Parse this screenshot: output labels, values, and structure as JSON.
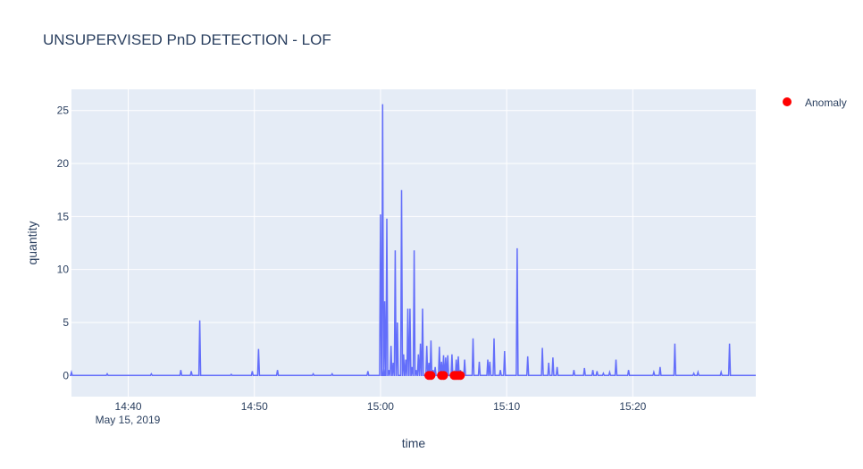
{
  "chart_data": {
    "type": "line",
    "title": "UNSUPERVISED PnD DETECTION - LOF",
    "xlabel": "time",
    "ylabel": "quantity",
    "x_date_label": "May 15, 2019",
    "x_ticks": [
      "14:40",
      "14:50",
      "15:00",
      "15:10",
      "15:20"
    ],
    "y_ticks": [
      0,
      5,
      10,
      15,
      20,
      25
    ],
    "ylim": [
      -2,
      27
    ],
    "xlim": [
      "14:35:30",
      "15:29:45"
    ],
    "grid": true,
    "legend": {
      "position": "top-right",
      "entries": [
        "Anomaly"
      ]
    },
    "colors": {
      "line": "#636efa",
      "anomaly": "#ff0000",
      "plot_bg": "#e5ecf6",
      "grid": "#ffffff"
    },
    "series": [
      {
        "type": "line",
        "x": [
          "14:35:30",
          "14:35:40",
          "14:35:50",
          "14:38:20",
          "14:41:50",
          "14:44:10",
          "14:45:00",
          "14:45:40",
          "14:45:45",
          "14:48:10",
          "14:49:50",
          "14:50:20",
          "14:51:50",
          "14:54:40",
          "14:56:10",
          "14:59:00",
          "15:00:00",
          "15:00:10",
          "15:00:15",
          "15:00:20",
          "15:00:30",
          "15:00:40",
          "15:00:50",
          "15:01:00",
          "15:01:10",
          "15:01:20",
          "15:01:40",
          "15:01:50",
          "15:02:00",
          "15:02:10",
          "15:02:20",
          "15:02:30",
          "15:02:40",
          "15:02:50",
          "15:03:00",
          "15:03:10",
          "15:03:20",
          "15:03:40",
          "15:03:50",
          "15:04:00",
          "15:04:10",
          "15:04:20",
          "15:04:40",
          "15:04:50",
          "15:05:00",
          "15:05:10",
          "15:05:20",
          "15:05:40",
          "15:05:50",
          "15:06:00",
          "15:06:10",
          "15:06:20",
          "15:06:40",
          "15:07:20",
          "15:07:50",
          "15:08:30",
          "15:08:40",
          "15:09:00",
          "15:09:30",
          "15:09:50",
          "15:10:50",
          "15:11:40",
          "15:12:50",
          "15:13:20",
          "15:13:40",
          "15:14:00",
          "15:15:20",
          "15:16:10",
          "15:16:50",
          "15:17:10",
          "15:17:40",
          "15:18:10",
          "15:18:40",
          "15:19:40",
          "15:21:40",
          "15:22:10",
          "15:23:20",
          "15:24:50",
          "15:25:10",
          "15:27:00",
          "15:27:40",
          "15:28:30",
          "15:29:40"
        ],
        "y": [
          0.3,
          0,
          0,
          0.15,
          0.15,
          0.5,
          0.4,
          5.2,
          0,
          0.1,
          0.4,
          2.5,
          0.5,
          0.15,
          0.15,
          0.4,
          15.2,
          25.6,
          0.8,
          7,
          14.8,
          0.5,
          2.8,
          1.2,
          11.8,
          5,
          17.5,
          2,
          1.5,
          6.3,
          6.3,
          0.8,
          11.8,
          0.5,
          2,
          3,
          6.3,
          2.8,
          1.2,
          3.3,
          0.5,
          0.8,
          2.7,
          1.3,
          1.9,
          1.7,
          1.9,
          2,
          0.3,
          1.5,
          1.8,
          0.5,
          1.5,
          3.5,
          1.3,
          1.5,
          1.3,
          3.5,
          0.5,
          2.3,
          12,
          1.8,
          2.6,
          1.2,
          1.7,
          0.8,
          0.5,
          0.7,
          0.5,
          0.4,
          0.2,
          0.3,
          1.5,
          0.5,
          0.3,
          0.8,
          3,
          0.2,
          0.3,
          0.3,
          3,
          0,
          0
        ]
      },
      {
        "name": "Anomaly",
        "type": "scatter",
        "x": [
          "15:03:50",
          "15:04:00",
          "15:04:50",
          "15:05:00",
          "15:05:50",
          "15:06:00",
          "15:06:10",
          "15:06:20"
        ],
        "y": [
          0,
          0,
          0,
          0,
          0,
          0,
          0,
          0
        ]
      }
    ]
  }
}
